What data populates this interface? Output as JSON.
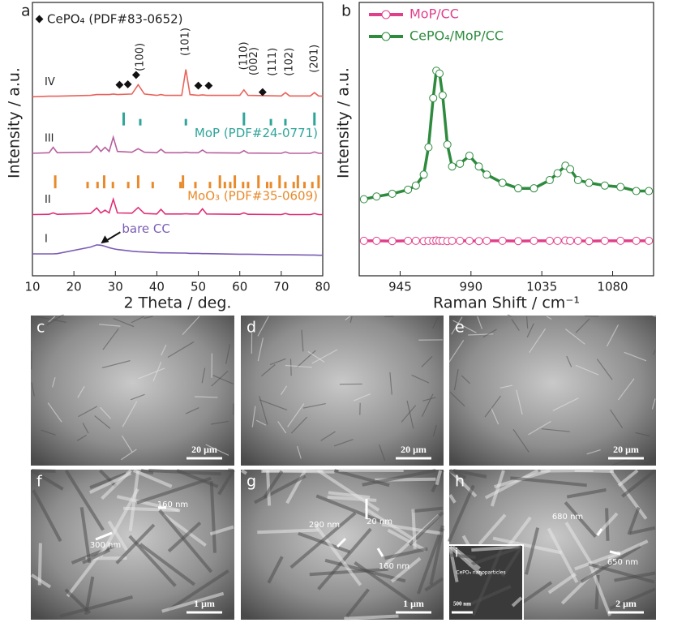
{
  "chart_data": [
    {
      "type": "line",
      "label": "a",
      "xlabel": "2 Theta / deg.",
      "ylabel": "Intensity / a.u.",
      "xlim": [
        10,
        80
      ],
      "xticks": [
        10,
        20,
        30,
        40,
        50,
        60,
        70,
        80
      ],
      "ylim": [
        0,
        100
      ],
      "legend_text": "CePO₄ (PDF#83-0652)",
      "cepo4_peaks": [
        31,
        33,
        35,
        50,
        52.5,
        65.5
      ],
      "x": [
        10,
        14,
        15,
        16,
        24,
        25.5,
        26.5,
        27.5,
        28.5,
        29.5,
        30.5,
        34,
        35.5,
        37,
        40,
        41,
        42,
        46,
        47,
        48,
        50,
        51,
        52,
        60,
        61,
        62,
        70,
        71,
        72,
        77,
        78,
        79,
        80
      ],
      "series": [
        {
          "name": "IV",
          "color": "#e8645c",
          "values": [
            65.5,
            65.7,
            65.7,
            65.7,
            66,
            66.3,
            66.3,
            66.3,
            66.3,
            66.5,
            66.3,
            66.5,
            69.9,
            66.5,
            66,
            66.3,
            66,
            66,
            75.5,
            66.3,
            66,
            66.2,
            66,
            66,
            68,
            66,
            65.8,
            67,
            65.8,
            65.8,
            67,
            65.8,
            65.7
          ]
        },
        {
          "name": "III",
          "color": "#b8609e",
          "values": [
            44.8,
            45,
            47,
            45,
            45.2,
            47.5,
            45.5,
            47,
            45.5,
            50.7,
            45.5,
            45.2,
            46.5,
            45.2,
            45,
            46.3,
            45,
            45,
            45.2,
            45,
            45,
            46,
            45,
            44.9,
            45.8,
            44.9,
            44.8,
            45.3,
            44.8,
            44.8,
            45.3,
            44.8,
            44.8
          ]
        },
        {
          "name": "II",
          "color": "#e03078",
          "values": [
            22.4,
            22.5,
            23,
            22.5,
            22.8,
            24.8,
            23,
            24,
            23,
            28,
            23,
            22.9,
            25,
            22.8,
            22.6,
            24.3,
            22.6,
            22.6,
            22.7,
            22.6,
            22.6,
            24.5,
            22.6,
            22.5,
            23,
            22.5,
            22.4,
            22.8,
            22.4,
            22.4,
            22.8,
            22.4,
            22.4
          ]
        },
        {
          "name": "I",
          "color": "#7b5cb4",
          "values": [
            8,
            8,
            8,
            8.1,
            10.5,
            11.3,
            11.2,
            10.8,
            10.3,
            9.9,
            9.6,
            9,
            8.8,
            8.7,
            8.5,
            8.4,
            8.4,
            8.3,
            8.3,
            8.2,
            8.2,
            8.1,
            8.1,
            7.9,
            7.9,
            7.9,
            7.7,
            7.7,
            7.7,
            7.6,
            7.6,
            7.5,
            7.5
          ]
        }
      ],
      "bare_label": "bare CC",
      "peak_labels": [
        {
          "x": 36,
          "label": "(100)"
        },
        {
          "x": 47,
          "label": "(101)"
        },
        {
          "x": 61,
          "label": "(110)"
        },
        {
          "x": 63.5,
          "label": "(002)"
        },
        {
          "x": 68,
          "label": "(111)"
        },
        {
          "x": 72,
          "label": "(102)"
        },
        {
          "x": 78,
          "label": "(201)"
        }
      ],
      "reference_patterns": [
        {
          "name": "MoP (PDF#24-0771)",
          "color": "#2fa59a",
          "positions": [
            32,
            36,
            47,
            61,
            67.5,
            71,
            78
          ]
        },
        {
          "name": "MoO₃ (PDF#35-0609)",
          "color": "#e88a2a",
          "positions": [
            15.5,
            23.3,
            25.7,
            27.3,
            29.4,
            33.1,
            35.5,
            39,
            45.7,
            46.3,
            49.3,
            52.8,
            55.2,
            56.4,
            57.7,
            58.8,
            60.8,
            62,
            64.5,
            66.6,
            67.5,
            69.6,
            71,
            73,
            74,
            75.6,
            77.5,
            79
          ]
        }
      ]
    },
    {
      "type": "line",
      "label": "b",
      "markers": true,
      "legend": "upper left",
      "xlabel": "Raman Shift / cm⁻¹",
      "ylabel": "Intensity / a.u.",
      "xlim": [
        919,
        1106
      ],
      "xticks": [
        945,
        990,
        1035,
        1080
      ],
      "ylim": [
        0,
        100
      ],
      "x": [
        922,
        930,
        940,
        950,
        955,
        960,
        963,
        966,
        968,
        970,
        972,
        975,
        978,
        983,
        989,
        995,
        1000,
        1010,
        1020,
        1030,
        1040,
        1045,
        1050,
        1053,
        1058,
        1065,
        1075,
        1085,
        1095,
        1103
      ],
      "series": [
        {
          "name": "MoP/CC",
          "color": "#e0408a",
          "values": [
            12.8,
            12.8,
            12.7,
            12.8,
            12.8,
            12.7,
            12.8,
            12.8,
            12.9,
            12.8,
            12.8,
            12.7,
            12.8,
            12.8,
            12.8,
            12.7,
            12.8,
            12.8,
            12.7,
            12.8,
            12.8,
            12.8,
            12.9,
            12.8,
            12.8,
            12.7,
            12.8,
            12.8,
            12.8,
            12.8
          ]
        },
        {
          "name": "CePO₄/MoP/CC",
          "color": "#2e8b3e",
          "values": [
            28,
            29,
            30,
            31.5,
            33,
            37,
            47,
            65,
            75,
            74,
            66,
            48,
            40,
            41,
            43.9,
            40,
            37,
            34,
            32,
            32,
            35,
            37.5,
            40.3,
            39,
            35,
            34,
            33,
            32.5,
            31,
            31
          ]
        }
      ]
    }
  ],
  "panels": [
    {
      "label": "c",
      "scale_bar": "20 μm",
      "annotations": []
    },
    {
      "label": "d",
      "scale_bar": "20 μm",
      "annotations": []
    },
    {
      "label": "e",
      "scale_bar": "20 μm",
      "annotations": []
    },
    {
      "label": "f",
      "scale_bar": "1 μm",
      "annotations": [
        "160 nm",
        "300 nm"
      ]
    },
    {
      "label": "g",
      "scale_bar": "1 μm",
      "annotations": [
        "290 nm",
        "20 nm",
        "160 nm"
      ]
    },
    {
      "label": "h",
      "scale_bar": "2 μm",
      "annotations": [
        "680 nm",
        "650 nm"
      ]
    },
    {
      "label": "i",
      "scale_bar": "500 nm",
      "annotations": [
        "CePO₄ nanoparticles"
      ]
    }
  ]
}
